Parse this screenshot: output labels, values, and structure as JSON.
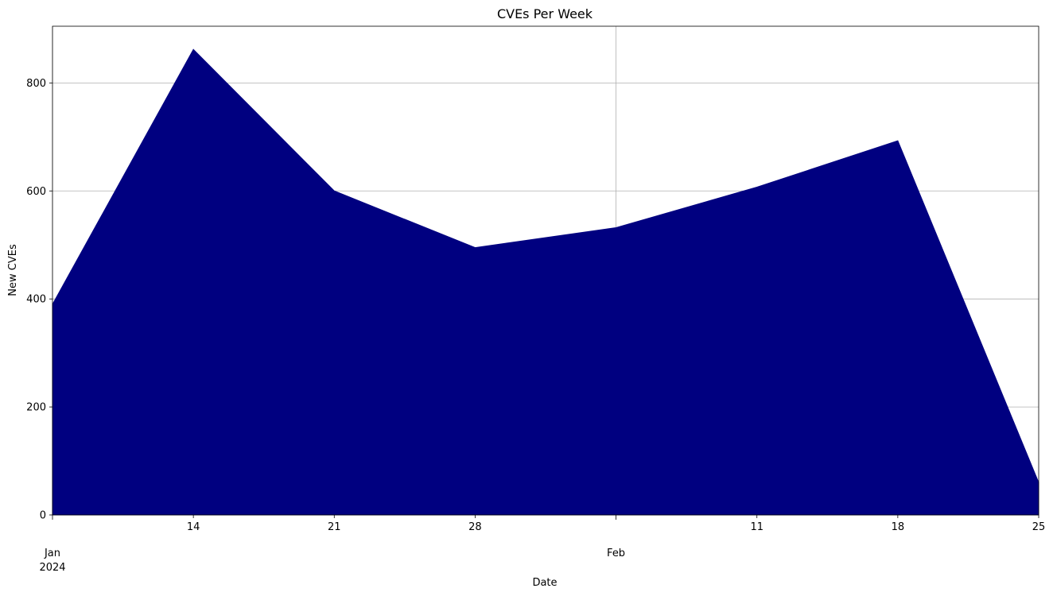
{
  "chart_data": {
    "type": "area",
    "title": "CVEs Per Week",
    "xlabel": "Date",
    "ylabel": "New CVEs",
    "x": [
      "2024-01-07",
      "2024-01-14",
      "2024-01-21",
      "2024-01-28",
      "2024-02-04",
      "2024-02-11",
      "2024-02-18",
      "2024-02-25"
    ],
    "series": [
      {
        "values": [
          390,
          862,
          600,
          495,
          532,
          607,
          693,
          60
        ]
      }
    ],
    "xlim": [
      "2024-01-07",
      "2024-02-25"
    ],
    "ylim": [
      0,
      905
    ],
    "y_ticks": [
      0,
      200,
      400,
      600,
      800
    ],
    "x_ticks": [
      {
        "date": "2024-01-07",
        "label": "Jan",
        "sublabel": "2024",
        "major": true
      },
      {
        "date": "2024-01-14",
        "label": "14",
        "sublabel": "",
        "major": false
      },
      {
        "date": "2024-01-21",
        "label": "21",
        "sublabel": "",
        "major": false
      },
      {
        "date": "2024-01-28",
        "label": "28",
        "sublabel": "",
        "major": false
      },
      {
        "date": "2024-02-04",
        "label": "Feb",
        "sublabel": "",
        "major": true
      },
      {
        "date": "2024-02-11",
        "label": "11",
        "sublabel": "",
        "major": false
      },
      {
        "date": "2024-02-18",
        "label": "18",
        "sublabel": "",
        "major": false
      },
      {
        "date": "2024-02-25",
        "label": "25",
        "sublabel": "",
        "major": false
      }
    ],
    "grid": true,
    "colors": {
      "fill": "#000080",
      "grid": "#b0b0b0"
    }
  }
}
